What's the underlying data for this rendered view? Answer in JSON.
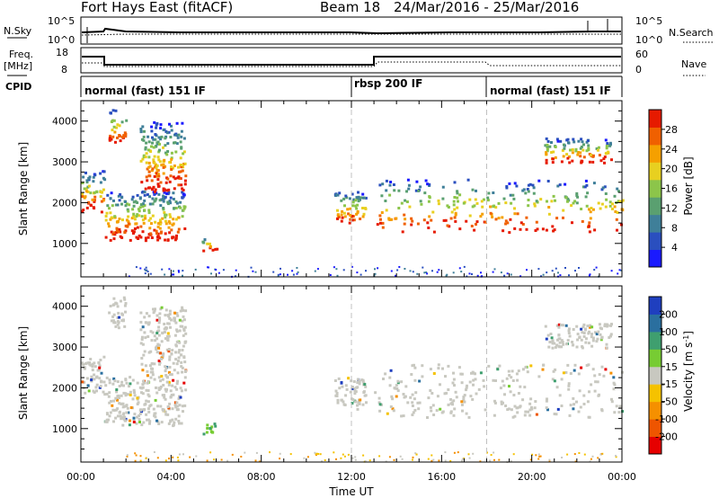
{
  "header": {
    "title": "Fort Hays East (fitACF)",
    "beam": "Beam 18",
    "dates": "24/Mar/2016 - 25/Mar/2016"
  },
  "strips": {
    "nsky_label": "N.Sky",
    "nsky_ticks": [
      "10^5",
      "10^0"
    ],
    "nsearch_label": "N.Search",
    "nsearch_ticks": [
      "10^5",
      "10^0"
    ],
    "freq_label_1": "Freq.",
    "freq_label_2": "[MHz]",
    "freq_ticks": [
      "18",
      "8"
    ],
    "nave_label": "Nave",
    "nave_ticks": [
      "60",
      "0"
    ],
    "cpid_label": "CPID",
    "cpid_segments": [
      {
        "label": "normal (fast) 151 IF",
        "start": 0,
        "end": 12
      },
      {
        "label": "rbsp 200 IF",
        "start": 12,
        "end": 18
      },
      {
        "label": "normal (fast) 151 IF",
        "start": 18,
        "end": 24
      }
    ]
  },
  "chart_data": [
    {
      "type": "heatmap",
      "title": "",
      "ylabel": "Slant Range [km]",
      "xlim": [
        0,
        24
      ],
      "ylim": [
        180,
        4500
      ],
      "yticks": [
        1000,
        2000,
        3000,
        4000
      ],
      "xticks": [
        0,
        4,
        8,
        12,
        16,
        20,
        24
      ],
      "colorbar": {
        "label": "Power [dB]",
        "range": [
          0,
          30
        ],
        "ticks": [
          "28",
          "24",
          "20",
          "16",
          "12",
          "8",
          "4"
        ],
        "colors": [
          "#1a1aff",
          "#2a4fbf",
          "#3f7f99",
          "#5aa070",
          "#8cc54a",
          "#e8d020",
          "#f5a000",
          "#f06000",
          "#e61a00"
        ]
      },
      "scatter_regions": [
        {
          "t0": 0.0,
          "t1": 1.0,
          "r0": 1800,
          "r1": 2800
        },
        {
          "t0": 1.0,
          "t1": 4.6,
          "r0": 1100,
          "r1": 2300
        },
        {
          "t0": 1.2,
          "t1": 2.0,
          "r0": 3500,
          "r1": 4300
        },
        {
          "t0": 2.6,
          "t1": 4.6,
          "r0": 2300,
          "r1": 4000
        },
        {
          "t0": 5.3,
          "t1": 6.0,
          "r0": 850,
          "r1": 1150
        },
        {
          "t0": 11.2,
          "t1": 12.6,
          "r0": 1500,
          "r1": 2300
        },
        {
          "t0": 13.0,
          "t1": 24.0,
          "r0": 1300,
          "r1": 2600
        },
        {
          "t0": 20.5,
          "t1": 23.5,
          "r0": 3000,
          "r1": 3600
        }
      ]
    },
    {
      "type": "heatmap",
      "title": "",
      "xlabel": "Time UT",
      "ylabel": "Slant Range [km]",
      "xlim": [
        0,
        24
      ],
      "ylim": [
        180,
        4500
      ],
      "yticks": [
        1000,
        2000,
        3000,
        4000
      ],
      "xticks": [
        0,
        4,
        8,
        12,
        16,
        20,
        24
      ],
      "xtick_labels": [
        "00:00",
        "04:00",
        "08:00",
        "12:00",
        "16:00",
        "20:00",
        "00:00"
      ],
      "colorbar": {
        "label": "Velocity [m s^-1]",
        "ticks": [
          "200",
          "100",
          "50",
          "15",
          "-15",
          "-50",
          "-100",
          "-200"
        ],
        "colors": [
          "#1f3fbf",
          "#2a6f9f",
          "#3f9f6f",
          "#77cc33",
          "#c8c8c0",
          "#f5c200",
          "#f59000",
          "#ee5500",
          "#e60000"
        ]
      },
      "ground_scatter_color": "#c8c8c0"
    }
  ]
}
